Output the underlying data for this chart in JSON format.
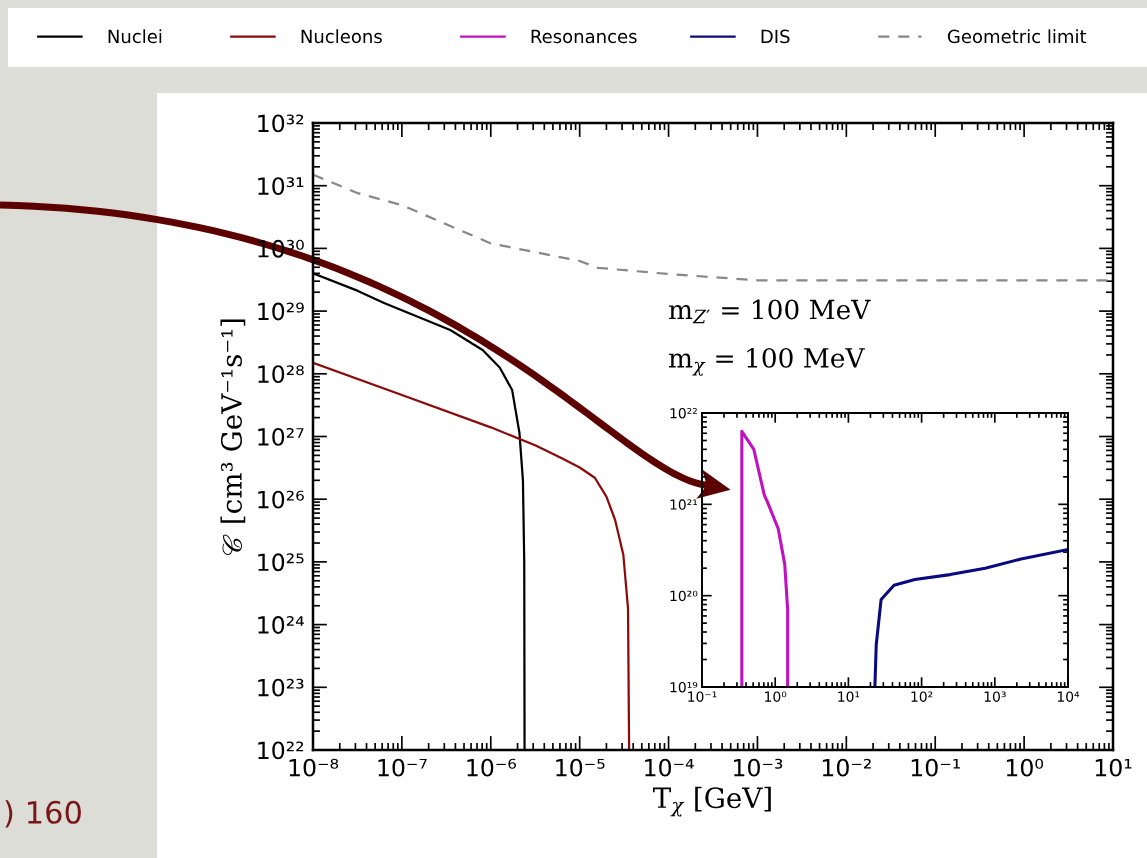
{
  "chart_data": [
    {
      "type": "line",
      "log": "xy",
      "legend": "top",
      "xlabel": "T$_{χ}$ [GeV]",
      "ylabel": "𝒞 [cm³ GeV⁻¹s⁻¹]",
      "xlim": [
        1e-08,
        10
      ],
      "ylim": [
        1e+22,
        1e+32
      ],
      "xticks": [
        {
          "value": 1e-08,
          "label": "10⁻⁸"
        },
        {
          "value": 1e-07,
          "label": "10⁻⁷"
        },
        {
          "value": 1e-06,
          "label": "10⁻⁶"
        },
        {
          "value": 1e-05,
          "label": "10⁻⁵"
        },
        {
          "value": 0.0001,
          "label": "10⁻⁴"
        },
        {
          "value": 0.001,
          "label": "10⁻³"
        },
        {
          "value": 0.01,
          "label": "10⁻²"
        },
        {
          "value": 0.1,
          "label": "10⁻¹"
        },
        {
          "value": 1,
          "label": "10⁰"
        },
        {
          "value": 10,
          "label": "10¹"
        }
      ],
      "yticks": [
        {
          "value": 1e+22,
          "label": "10²²"
        },
        {
          "value": 1e+23,
          "label": "10²³"
        },
        {
          "value": 1e+24,
          "label": "10²⁴"
        },
        {
          "value": 1e+25,
          "label": "10²⁵"
        },
        {
          "value": 1e+26,
          "label": "10²⁶"
        },
        {
          "value": 1e+27,
          "label": "10²⁷"
        },
        {
          "value": 1e+28,
          "label": "10²⁸"
        },
        {
          "value": 1e+29,
          "label": "10²⁹"
        },
        {
          "value": 1e+30,
          "label": "10³⁰"
        },
        {
          "value": 1e+31,
          "label": "10³¹"
        },
        {
          "value": 1e+32,
          "label": "10³²"
        }
      ],
      "annotations": [
        "m$_{Z′}$ = 100 MeV",
        "m$_{χ}$ = 100 MeV",
        ") 160"
      ],
      "series": [
        {
          "name": "Nuclei",
          "color": "#000000",
          "x": [
            1e-08,
            3.2e-08,
            6.3e-08,
            3.5e-07,
            8.1e-07,
            1.26e-06,
            1.74e-06,
            2.1e-06,
            2.3e-06,
            2.38e-06,
            2.4e-06
          ],
          "values": [
            4e+29,
            2.1e+29,
            1.35e+29,
            5e+28,
            2.4e+28,
            1.26e+28,
            5.5e+27,
            1.15e+27,
            2e+26,
            1e+25,
            1e+22
          ]
        },
        {
          "name": "Nucleons",
          "color": "#8b0a0a",
          "x": [
            1e-08,
            1e-07,
            1e-06,
            3.2e-06,
            6.3e-06,
            1e-05,
            1.48e-05,
            2e-05,
            2.5e-05,
            3.1e-05,
            3.5e-05,
            3.6e-05
          ],
          "values": [
            1.5e+28,
            4.6e+27,
            1.4e+27,
            7.2e+26,
            4.5e+26,
            3.2e+26,
            2.2e+26,
            1.1e+26,
            4.7e+25,
            1.3e+25,
            1.8e+24,
            1e+22
          ]
        },
        {
          "name": "Geometric limit",
          "color": "#888888",
          "line_style": "dashed",
          "x": [
            1e-08,
            3.2e-08,
            1e-07,
            1e-06,
            1e-05,
            1.6e-05,
            0.0001,
            0.001,
            0.01,
            0.1,
            1,
            10
          ],
          "values": [
            1.5e+31,
            7.6e+30,
            4.9e+30,
            1.2e+30,
            6.3e+29,
            4.9e+29,
            3.9e+29,
            3.1e+29,
            3.1e+29,
            3.1e+29,
            3.1e+29,
            3.1e+29
          ]
        }
      ]
    },
    {
      "type": "line",
      "log": "xy",
      "legend": "top",
      "xlim": [
        0.1,
        10000
      ],
      "ylim": [
        1e+19,
        1e+22
      ],
      "xticks": [
        {
          "value": 0.1,
          "label": "10⁻¹"
        },
        {
          "value": 1,
          "label": "10⁰"
        },
        {
          "value": 10,
          "label": "10¹"
        },
        {
          "value": 100,
          "label": "10²"
        },
        {
          "value": 1000,
          "label": "10³"
        },
        {
          "value": 10000,
          "label": "10⁴"
        }
      ],
      "yticks": [
        {
          "value": 1e+19,
          "label": "10¹⁹"
        },
        {
          "value": 1e+20,
          "label": "10²⁰"
        },
        {
          "value": 1e+21,
          "label": "10²¹"
        },
        {
          "value": 1e+22,
          "label": "10²²"
        }
      ],
      "series": [
        {
          "name": "Resonances",
          "color": "#c010c0",
          "x": [
            0.35,
            0.35,
            0.51,
            0.71,
            0.78,
            1.1,
            1.35,
            1.48,
            1.48
          ],
          "values": [
            1e+19,
            6.3e+21,
            4e+21,
            1.26e+21,
            1.07e+21,
            5.4e+20,
            2.2e+20,
            7e+19,
            1e+19
          ]
        },
        {
          "name": "DIS",
          "color": "#0a0a80",
          "x": [
            23,
            24,
            28,
            42,
            81,
            245,
            740,
            2200,
            10000
          ],
          "values": [
            1e+19,
            2.9e+19,
            9.1e+19,
            1.3e+20,
            1.5e+20,
            1.7e+20,
            2e+20,
            2.5e+20,
            3.2e+20
          ]
        }
      ]
    }
  ]
}
